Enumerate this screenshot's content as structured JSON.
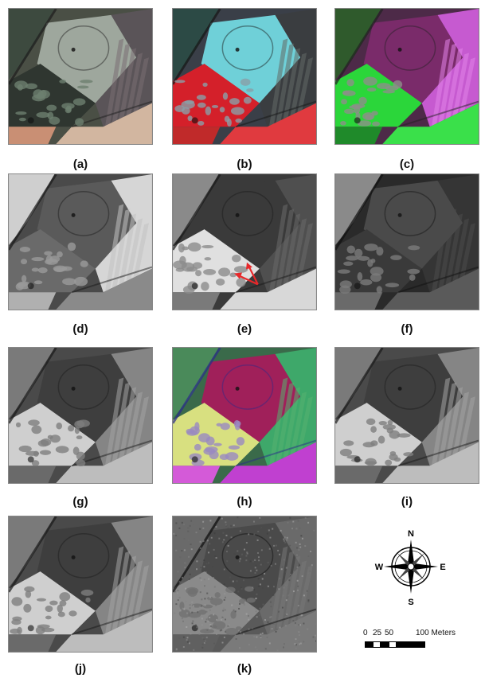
{
  "panels": [
    {
      "id": "a",
      "label": "(a)",
      "palette": "natural"
    },
    {
      "id": "b",
      "label": "(b)",
      "palette": "falsecolor-red"
    },
    {
      "id": "c",
      "label": "(c)",
      "palette": "falsecolor-magenta-green"
    },
    {
      "id": "d",
      "label": "(d)",
      "palette": "gray-bright"
    },
    {
      "id": "e",
      "label": "(e)",
      "palette": "gray-dark-annotated"
    },
    {
      "id": "f",
      "label": "(f)",
      "palette": "gray-dark"
    },
    {
      "id": "g",
      "label": "(g)",
      "palette": "gray-mid"
    },
    {
      "id": "h",
      "label": "(h)",
      "palette": "rainbow-composite"
    },
    {
      "id": "i",
      "label": "(i)",
      "palette": "gray-mid"
    },
    {
      "id": "j",
      "label": "(j)",
      "palette": "gray-mid"
    },
    {
      "id": "k",
      "label": "(k)",
      "palette": "gray-noisy"
    }
  ],
  "compass": {
    "n": "N",
    "s": "S",
    "e": "E",
    "w": "W"
  },
  "scale": {
    "l0": "0",
    "l1": "25",
    "l2": "50",
    "l3": "100 Meters"
  },
  "colors": {
    "arrow": "#e8282a"
  }
}
